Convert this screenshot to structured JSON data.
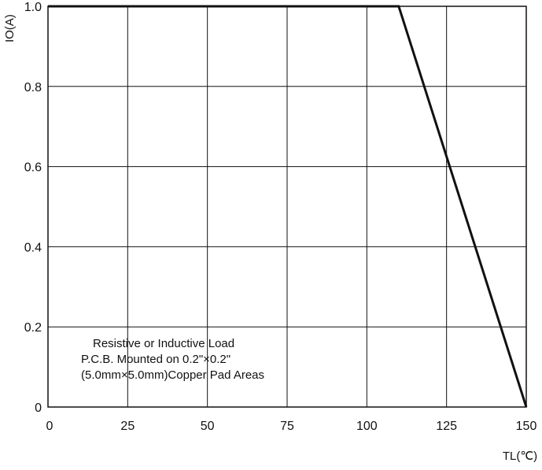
{
  "chart_data": {
    "type": "line",
    "title": "",
    "xlabel": "TL(℃)",
    "ylabel": "IO(A)",
    "xlim": [
      0,
      150
    ],
    "ylim": [
      0,
      1.0
    ],
    "x_ticks": [
      "0",
      "25",
      "50",
      "75",
      "100",
      "125",
      "150"
    ],
    "y_ticks": [
      "0",
      "0.2",
      "0.4",
      "0.6",
      "0.8",
      "1.0"
    ],
    "grid": true,
    "series": [
      {
        "x": [
          0,
          110,
          150
        ],
        "y": [
          1.0,
          1.0,
          0
        ]
      }
    ],
    "annotation": [
      "Resistive or Inductive Load",
      "P.C.B. Mounted on 0.2\"×0.2\"",
      "(5.0mm×5.0mm)Copper Pad Areas"
    ]
  }
}
